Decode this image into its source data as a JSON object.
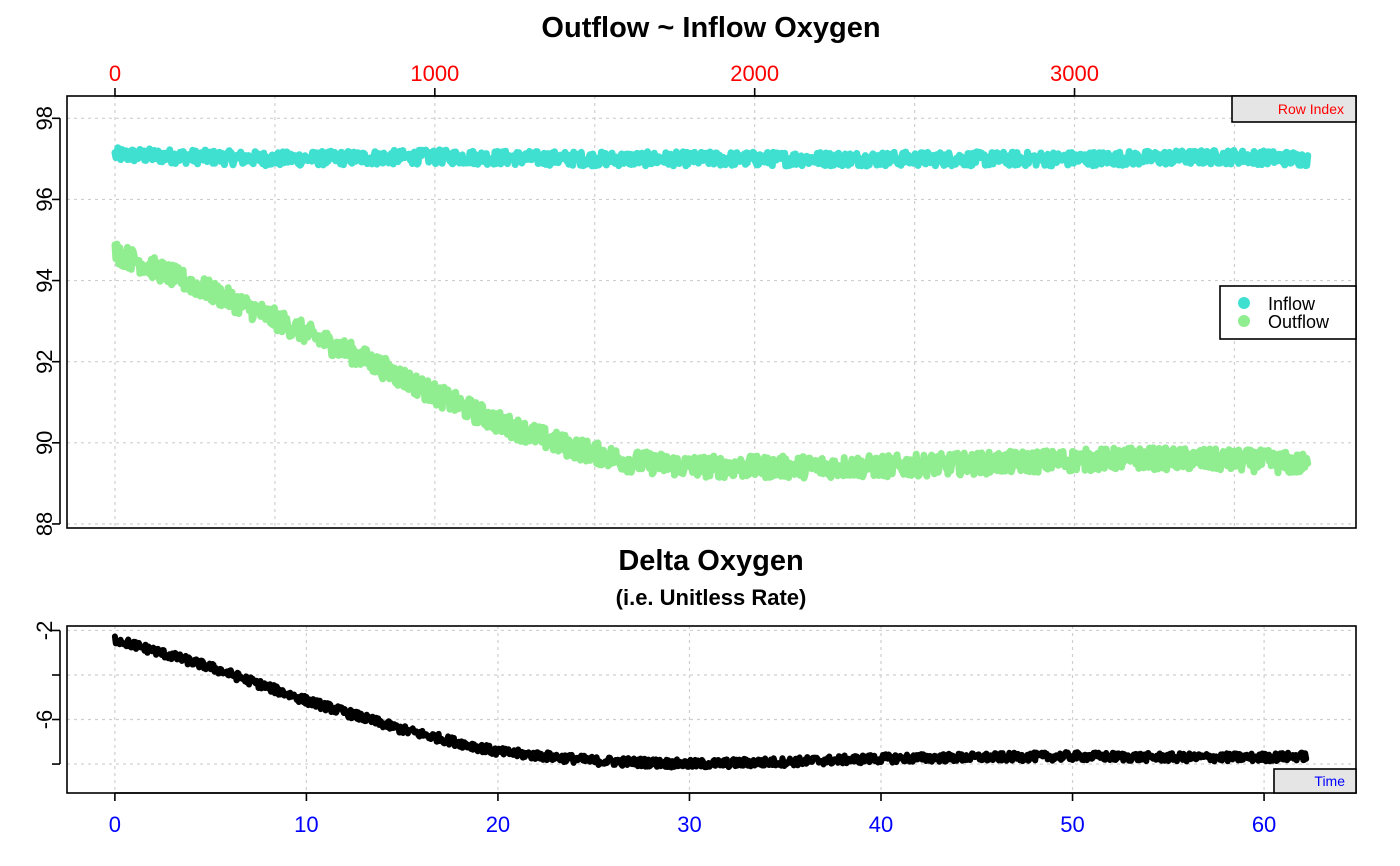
{
  "colors": {
    "inflow": "#40E0D0",
    "outflow": "#90EE90",
    "delta": "#000000",
    "index_axis": "#FF0000",
    "time_axis": "#0000FF",
    "badge_fill": "#E5E5E5"
  },
  "chart_data": [
    {
      "type": "scatter",
      "title": "Outflow ~ Inflow Oxygen",
      "x_axis": {
        "label": "Row Index",
        "position": "top",
        "ticks": [
          0,
          1000,
          2000,
          3000
        ],
        "tick_labels": [
          "0",
          "1000",
          "2000",
          "3000"
        ],
        "range": [
          -150,
          3880
        ]
      },
      "y_axis": {
        "ticks": [
          88,
          90,
          92,
          94,
          96,
          98
        ],
        "tick_labels": [
          "88",
          "90",
          "92",
          "94",
          "96",
          "98"
        ],
        "range": [
          87.9,
          98.55
        ]
      },
      "grid": true,
      "legend": {
        "placement": "right",
        "entries": [
          "Inflow",
          "Outflow"
        ]
      },
      "series": [
        {
          "name": "Inflow",
          "x": [
            0,
            500,
            1000,
            1500,
            2000,
            2500,
            3000,
            3500,
            3730
          ],
          "y": [
            97.1,
            97.0,
            97.05,
            97.0,
            97.0,
            97.0,
            97.0,
            97.05,
            97.0
          ],
          "noise": 0.35
        },
        {
          "name": "Outflow",
          "x": [
            0,
            200,
            400,
            600,
            800,
            1000,
            1200,
            1400,
            1600,
            1800,
            2000,
            2400,
            2800,
            3200,
            3600,
            3730
          ],
          "y": [
            94.7,
            94.05,
            93.4,
            92.7,
            92.0,
            91.2,
            90.5,
            89.95,
            89.55,
            89.42,
            89.4,
            89.42,
            89.52,
            89.62,
            89.55,
            89.45
          ],
          "noise": 0.55
        }
      ]
    },
    {
      "type": "line",
      "title": "Delta Oxygen",
      "subtitle": "(i.e. Unitless Rate)",
      "x_axis": {
        "label": "Time",
        "position": "bottom",
        "ticks": [
          0,
          10,
          20,
          30,
          40,
          50,
          60
        ],
        "tick_labels": [
          "0",
          "10",
          "20",
          "30",
          "40",
          "50",
          "60"
        ],
        "range": [
          -2.5,
          64.8
        ]
      },
      "y_axis": {
        "ticks": [
          -2,
          -6
        ],
        "tick_labels": [
          "-2",
          "-6"
        ],
        "range": [
          -9.3,
          -1.8
        ]
      },
      "grid": true,
      "series": [
        {
          "x": [
            0,
            5,
            10,
            15,
            20,
            25,
            30,
            35,
            40,
            45,
            50,
            55,
            60,
            62.2
          ],
          "y": [
            -2.4,
            -3.65,
            -5.15,
            -6.45,
            -7.45,
            -7.85,
            -8.0,
            -7.9,
            -7.75,
            -7.7,
            -7.65,
            -7.7,
            -7.7,
            -7.65
          ],
          "noise": 0.38
        }
      ]
    }
  ]
}
